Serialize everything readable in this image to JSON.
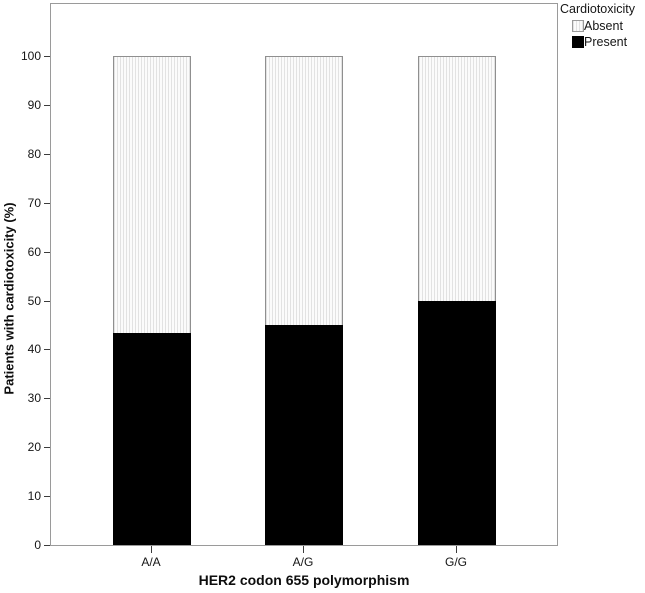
{
  "figure": {
    "kind": "stacked-bar-chart"
  },
  "legend": {
    "title": "Cardiotoxicity",
    "items": [
      {
        "label": "Absent",
        "swatch": "striped-light"
      },
      {
        "label": "Present",
        "swatch": "solid-black"
      }
    ]
  },
  "chart_data": {
    "type": "bar",
    "stacked": true,
    "categories": [
      "A/A",
      "A/G",
      "G/G"
    ],
    "series": [
      {
        "name": "Present",
        "values": [
          43.3,
          45.0,
          50.0
        ],
        "color": "#000000",
        "pattern": "solid"
      },
      {
        "name": "Absent",
        "values": [
          56.7,
          55.0,
          50.0
        ],
        "color": "#fbfbfb",
        "pattern": "vertical-stripes"
      }
    ],
    "title": "",
    "xlabel": "HER2 codon 655 polymorphism",
    "ylabel": "Patients with cardiotoxicity (%)",
    "ylim": [
      0,
      100
    ],
    "yticks": [
      0,
      10,
      20,
      30,
      40,
      50,
      60,
      70,
      80,
      90,
      100
    ],
    "grid": false,
    "legend_position": "top-right-outside",
    "bar_total_percent": 100
  },
  "colors": {
    "present": "#000000",
    "absent_fill": "#fbfbfb",
    "absent_stripe": "#e2e2e2",
    "frame": "#9a9a9a",
    "text": "#161616"
  }
}
